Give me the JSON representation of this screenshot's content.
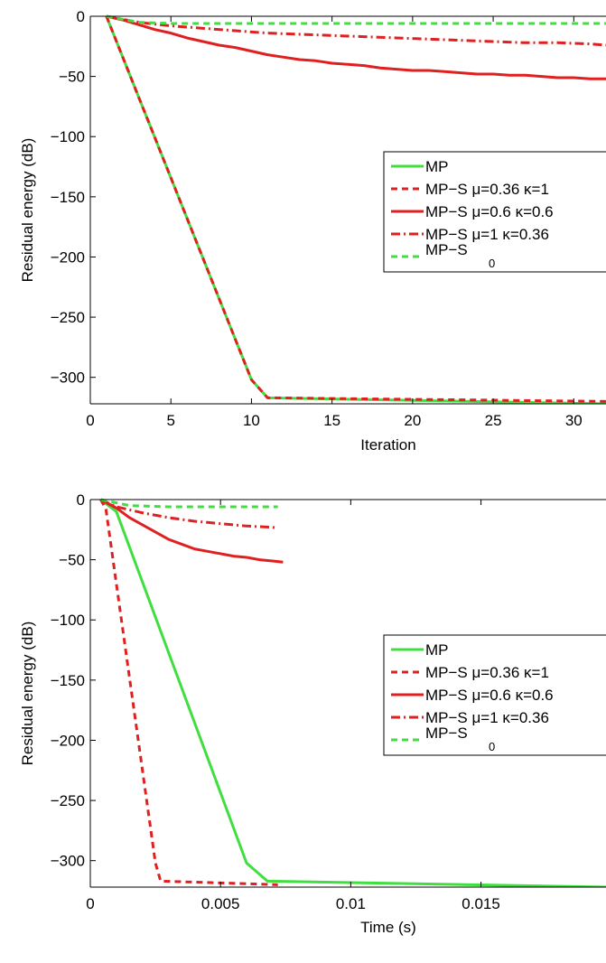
{
  "colors": {
    "green": "#3fdf3f",
    "red": "#e02020",
    "axis": "#000000"
  },
  "legend_entries": [
    {
      "label": "MP",
      "color": "#3fdf3f",
      "dash": "solid"
    },
    {
      "label": "MP−S μ=0.36 κ=1",
      "color": "#e02020",
      "dash": "dashed"
    },
    {
      "label": "MP−S μ=0.6 κ=0.6",
      "color": "#e02020",
      "dash": "solid"
    },
    {
      "label": "MP−S μ=1 κ=0.36",
      "color": "#e02020",
      "dash": "dashdot"
    },
    {
      "label": "MP−S",
      "subscript": "0",
      "color": "#3fdf3f",
      "dash": "dashed"
    }
  ],
  "chart_data": [
    {
      "type": "line",
      "xlabel": "Iteration",
      "ylabel": "Residual energy (dB)",
      "xlim": [
        0,
        32
      ],
      "ylim": [
        -322,
        0
      ],
      "xticks": [
        0,
        5,
        10,
        15,
        20,
        25,
        30
      ],
      "yticks": [
        0,
        -50,
        -100,
        -150,
        -200,
        -250,
        -300
      ],
      "xtick_labels": [
        "0",
        "5",
        "10",
        "15",
        "20",
        "25",
        "30"
      ],
      "ytick_labels": [
        "0",
        "−50",
        "−100",
        "−150",
        "−200",
        "−250",
        "−300"
      ],
      "legend_position": "right",
      "series": [
        {
          "name": "MP",
          "color": "#3fdf3f",
          "dash": "solid",
          "x": [
            1,
            10,
            11,
            32
          ],
          "y": [
            0,
            -302,
            -317,
            -322
          ]
        },
        {
          "name": "MP−S μ=0.36 κ=1",
          "color": "#e02020",
          "dash": "dashed",
          "x": [
            1,
            10,
            11,
            32
          ],
          "y": [
            0,
            -302,
            -317,
            -320
          ]
        },
        {
          "name": "MP−S μ=0.6 κ=0.6",
          "color": "#e02020",
          "dash": "solid",
          "x": [
            1,
            2,
            3,
            4,
            5,
            6,
            7,
            8,
            9,
            10,
            11,
            12,
            13,
            14,
            15,
            16,
            17,
            18,
            19,
            20,
            21,
            22,
            23,
            24,
            25,
            26,
            27,
            28,
            29,
            30,
            31,
            32
          ],
          "y": [
            0,
            -3,
            -7,
            -11,
            -14,
            -18,
            -21,
            -24,
            -26,
            -29,
            -32,
            -34,
            -36,
            -37,
            -39,
            -40,
            -41,
            -43,
            -44,
            -45,
            -45,
            -46,
            -47,
            -48,
            -48,
            -49,
            -49,
            -50,
            -51,
            -51,
            -52,
            -52
          ]
        },
        {
          "name": "MP−S μ=1 κ=0.36",
          "color": "#e02020",
          "dash": "dashdot",
          "x": [
            1,
            3,
            5,
            7,
            9,
            11,
            13,
            15,
            17,
            19,
            21,
            23,
            25,
            27,
            29,
            31,
            32
          ],
          "y": [
            0,
            -5,
            -8,
            -10,
            -12,
            -14,
            -15,
            -16,
            -17,
            -18,
            -19,
            -20,
            -21,
            -22,
            -22,
            -23,
            -24
          ]
        },
        {
          "name": "MP−S0",
          "color": "#3fdf3f",
          "dash": "dashed",
          "x": [
            1,
            3,
            5,
            32
          ],
          "y": [
            0,
            -5,
            -6,
            -6
          ]
        }
      ]
    },
    {
      "type": "line",
      "xlabel": "Time (s)",
      "ylabel": "Residual energy (dB)",
      "xlim": [
        0,
        0.0198
      ],
      "ylim": [
        -322,
        0
      ],
      "xticks": [
        0,
        0.005,
        0.01,
        0.015
      ],
      "yticks": [
        0,
        -50,
        -100,
        -150,
        -200,
        -250,
        -300
      ],
      "xtick_labels": [
        "0",
        "0.005",
        "0.01",
        "0.015"
      ],
      "ytick_labels": [
        "0",
        "−50",
        "−100",
        "−150",
        "−200",
        "−250",
        "−300"
      ],
      "legend_position": "right",
      "series": [
        {
          "name": "MP",
          "color": "#3fdf3f",
          "dash": "solid",
          "x": [
            0.0004,
            0.001,
            0.006,
            0.0068,
            0.0198
          ],
          "y": [
            0,
            -10,
            -302,
            -317,
            -322
          ]
        },
        {
          "name": "MP−S μ=0.36 κ=1",
          "color": "#e02020",
          "dash": "dashed",
          "x": [
            0.0004,
            0.0006,
            0.0025,
            0.0027,
            0.0072
          ],
          "y": [
            0,
            -8,
            -302,
            -317,
            -320
          ]
        },
        {
          "name": "MP−S μ=0.6 κ=0.6",
          "color": "#e02020",
          "dash": "solid",
          "x": [
            0.0004,
            0.001,
            0.0015,
            0.002,
            0.0025,
            0.003,
            0.0035,
            0.004,
            0.0045,
            0.005,
            0.0055,
            0.006,
            0.0065,
            0.007,
            0.0074
          ],
          "y": [
            0,
            -7,
            -15,
            -21,
            -27,
            -33,
            -37,
            -41,
            -43,
            -45,
            -47,
            -48,
            -50,
            -51,
            -52
          ]
        },
        {
          "name": "MP−S μ=1 κ=0.36",
          "color": "#e02020",
          "dash": "dashdot",
          "x": [
            0.0004,
            0.001,
            0.002,
            0.003,
            0.004,
            0.005,
            0.006,
            0.007,
            0.0072
          ],
          "y": [
            0,
            -6,
            -11,
            -15,
            -18,
            -20,
            -22,
            -23,
            -24
          ]
        },
        {
          "name": "MP−S0",
          "color": "#3fdf3f",
          "dash": "dashed",
          "x": [
            0.0004,
            0.0015,
            0.003,
            0.0072
          ],
          "y": [
            0,
            -5,
            -6,
            -6
          ]
        }
      ]
    }
  ]
}
